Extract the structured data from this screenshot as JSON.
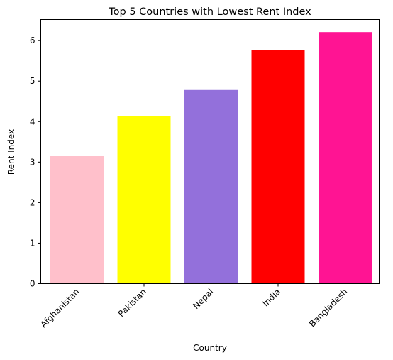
{
  "chart_data": {
    "type": "bar",
    "title": "Top 5 Countries with Lowest Rent Index",
    "xlabel": "Country",
    "ylabel": "Rent Index",
    "categories": [
      "Afghanistan",
      "Pakistan",
      "Nepal",
      "India",
      "Bangladesh"
    ],
    "values": [
      3.16,
      4.14,
      4.78,
      5.77,
      6.21
    ],
    "colors": [
      "#ffc0cb",
      "#ffff00",
      "#9370db",
      "#ff0000",
      "#ff1493"
    ],
    "ylim": [
      0,
      6.52
    ],
    "yticks": [
      "0",
      "1",
      "2",
      "3",
      "4",
      "5",
      "6"
    ],
    "grid": false,
    "legend": "none"
  }
}
